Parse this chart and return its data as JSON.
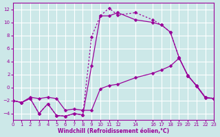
{
  "xlabel": "Windchill (Refroidissement éolien,°C)",
  "background_color": "#cce8e8",
  "grid_color": "#ffffff",
  "line_color": "#990099",
  "xlim": [
    0,
    23
  ],
  "ylim": [
    -5,
    13
  ],
  "xticks": [
    0,
    1,
    2,
    3,
    4,
    5,
    6,
    7,
    8,
    9,
    10,
    11,
    12,
    14,
    16,
    17,
    18,
    19,
    20,
    21,
    22,
    23
  ],
  "yticks": [
    -4,
    -2,
    0,
    2,
    4,
    6,
    8,
    10,
    12
  ],
  "line_top_x": [
    0,
    1,
    2,
    3,
    4,
    5,
    6,
    7,
    8,
    9,
    10,
    11,
    12,
    14,
    16,
    17,
    18,
    19,
    20,
    21,
    22,
    23
  ],
  "line_top_y": [
    -2,
    -2.3,
    -1.7,
    -4.0,
    -2.5,
    -4.3,
    -4.4,
    -4.0,
    -4.2,
    7.8,
    11.0,
    12.2,
    11.1,
    11.5,
    10.4,
    9.6,
    8.5,
    4.6,
    1.8,
    0.3,
    -1.5,
    -1.7
  ],
  "line_mid_x": [
    0,
    1,
    2,
    3,
    4,
    5,
    6,
    7,
    8,
    9,
    10,
    11,
    12,
    14,
    16,
    17,
    18,
    19,
    20,
    21,
    22,
    23
  ],
  "line_mid_y": [
    -2,
    -2.3,
    -1.7,
    -4.0,
    -2.5,
    -4.3,
    -4.4,
    -4.0,
    -4.2,
    3.3,
    11.0,
    11.0,
    11.5,
    10.4,
    10.0,
    9.6,
    8.5,
    4.6,
    1.8,
    0.3,
    -1.5,
    -1.7
  ],
  "line_bot_x": [
    0,
    1,
    2,
    3,
    4,
    5,
    6,
    7,
    8,
    9,
    10,
    11,
    12,
    14,
    16,
    17,
    18,
    19,
    20,
    21,
    22,
    23
  ],
  "line_bot_y": [
    -2,
    -2.3,
    -1.5,
    -1.7,
    -1.5,
    -1.7,
    -3.5,
    -3.3,
    -3.5,
    -3.5,
    -0.2,
    0.3,
    0.5,
    1.5,
    2.2,
    2.7,
    3.3,
    4.5,
    1.9,
    0.2,
    -1.6,
    -1.7
  ]
}
